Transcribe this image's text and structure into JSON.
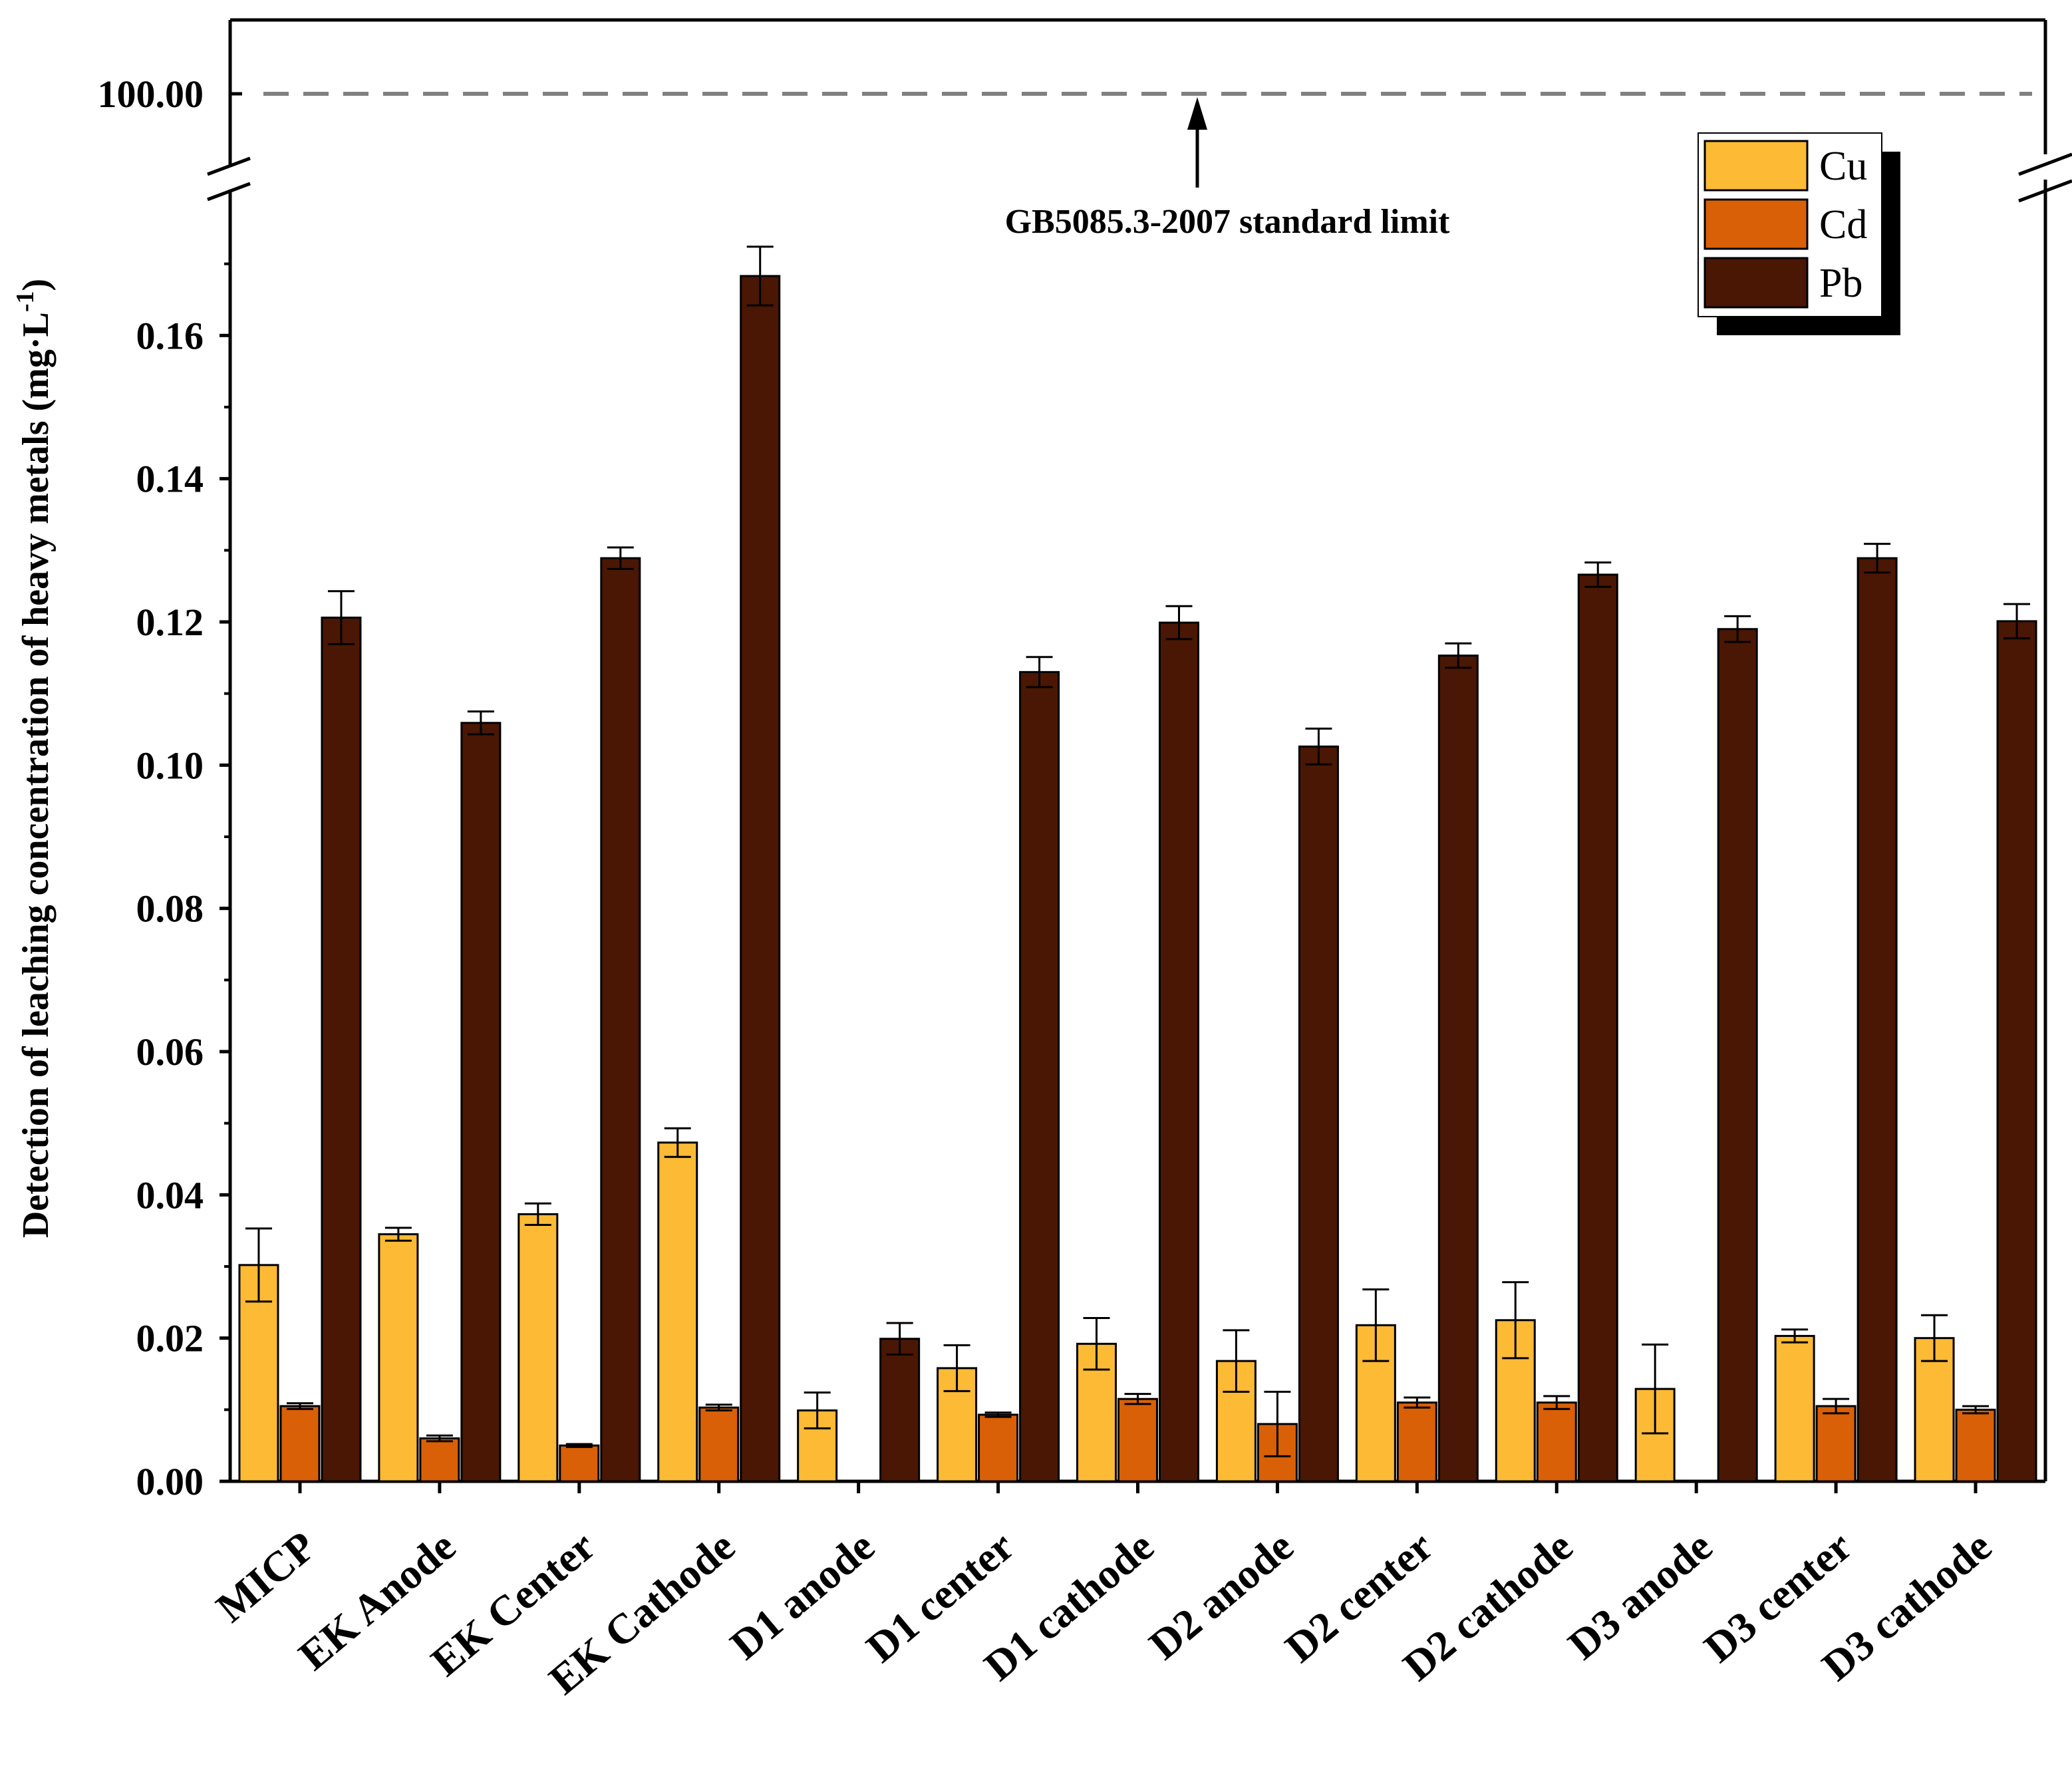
{
  "chart_data": {
    "type": "bar",
    "title": "",
    "xlabel": "",
    "ylabel": "Detection of leaching concentration of heavy metals (mg·L",
    "ylabel_superscript": "-1",
    "ylabel_close": ")",
    "ylim": [
      0,
      0.18
    ],
    "yticks": [
      "0.00",
      "0.02",
      "0.04",
      "0.06",
      "0.08",
      "0.10",
      "0.12",
      "0.14",
      "0.16"
    ],
    "ytick_values": [
      0,
      0.02,
      0.04,
      0.06,
      0.08,
      0.1,
      0.12,
      0.14,
      0.16
    ],
    "broken_axis": true,
    "upper_segment": {
      "tick_label": "100.00",
      "reference_value": 100.0,
      "reference_line_style": "dashed",
      "annotation": "GB5085.3-2007 standard limit"
    },
    "categories": [
      "MICP",
      "EK Anode",
      "EK Center",
      "EK Cathode",
      "D1 anode",
      "D1 center",
      "D1 cathode",
      "D2 anode",
      "D2 center",
      "D2 cathode",
      "D3 anode",
      "D3 center",
      "D3 cathode"
    ],
    "series": [
      {
        "name": "Cu",
        "color": "#FDBA35",
        "values": [
          0.0302,
          0.0345,
          0.0373,
          0.0473,
          0.0099,
          0.0158,
          0.0192,
          0.0168,
          0.0218,
          0.0225,
          0.0129,
          0.0203,
          0.02
        ],
        "errors": [
          0.0051,
          0.0009,
          0.0015,
          0.002,
          0.0025,
          0.0032,
          0.0036,
          0.0043,
          0.005,
          0.0053,
          0.0062,
          0.0009,
          0.0032
        ]
      },
      {
        "name": "Cd",
        "color": "#D96006",
        "values": [
          0.0105,
          0.006,
          0.005,
          0.0103,
          0.0,
          0.0093,
          0.0115,
          0.008,
          0.011,
          0.011,
          0.0,
          0.0105,
          0.01
        ],
        "errors": [
          0.0004,
          0.0004,
          0.0002,
          0.0004,
          0.0,
          0.0003,
          0.0007,
          0.0045,
          0.0007,
          0.0009,
          0.0,
          0.001,
          0.0005
        ]
      },
      {
        "name": "Pb",
        "color": "#4A1704",
        "values": [
          0.1206,
          0.1059,
          0.1289,
          0.1683,
          0.0199,
          0.113,
          0.1199,
          0.1026,
          0.1153,
          0.1266,
          0.119,
          0.1289,
          0.1201
        ],
        "errors": [
          0.0037,
          0.0016,
          0.0015,
          0.0041,
          0.0022,
          0.0021,
          0.0023,
          0.0025,
          0.0017,
          0.0017,
          0.0018,
          0.002,
          0.0024
        ]
      }
    ],
    "legend": {
      "entries": [
        "Cu",
        "Cd",
        "Pb"
      ],
      "placement": "top-right"
    }
  }
}
